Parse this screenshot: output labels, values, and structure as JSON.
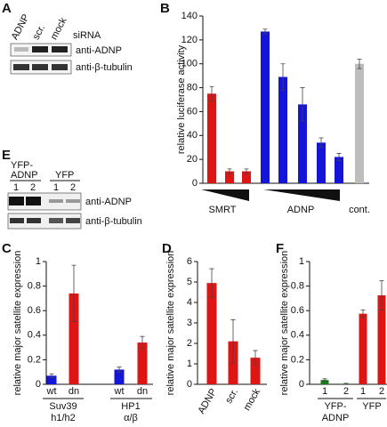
{
  "panels": {
    "A": {
      "label": "A",
      "lanes": [
        "ADNP",
        "scr.",
        "mock"
      ],
      "lane_title": "siRNA",
      "rows": [
        "anti-ADNP",
        "anti-β-tubulin"
      ]
    },
    "E": {
      "label": "E",
      "groups": [
        [
          "YFP-",
          "ADNP"
        ],
        [
          "YFP"
        ]
      ],
      "lanes": [
        "1",
        "2",
        "1",
        "2"
      ],
      "rows": [
        "anti-ADNP",
        "anti-β-tubulin"
      ]
    }
  },
  "chart_data": [
    {
      "type": "bar",
      "panel": "B",
      "ylabel": "relative luciferase activity",
      "categories": [
        null,
        null,
        null,
        null,
        null,
        null,
        null,
        null,
        "cont."
      ],
      "values": [
        75,
        10,
        10,
        127,
        89,
        66,
        34,
        22,
        100
      ],
      "errors": [
        6,
        2,
        2,
        2,
        11,
        14,
        4,
        3,
        4
      ],
      "colors": [
        "#dd1515",
        "#dd1515",
        "#dd1515",
        "#1515d8",
        "#1515d8",
        "#1515d8",
        "#1515d8",
        "#1515d8",
        "#bdbdbd"
      ],
      "groups": [
        [
          "SMRT"
        ],
        [
          "ADNP"
        ]
      ],
      "ylim": [
        0,
        140
      ],
      "yticks": [
        0,
        20,
        40,
        60,
        80,
        100,
        120,
        140
      ]
    },
    {
      "type": "bar",
      "panel": "C",
      "ylabel": "relative major satellite expression",
      "categories": [
        "wt",
        "dn",
        "wt",
        "dn"
      ],
      "values": [
        0.07,
        0.74,
        0.12,
        0.34
      ],
      "errors": [
        0.015,
        0.23,
        0.02,
        0.05
      ],
      "colors": [
        "#1515d8",
        "#dd1515",
        "#1515d8",
        "#dd1515"
      ],
      "groups": [
        [
          "Suv39",
          "h1/h2"
        ],
        [
          "HP1",
          "α/β"
        ]
      ],
      "ylim": [
        0,
        1
      ],
      "yticks": [
        0,
        0.2,
        0.4,
        0.6,
        0.8,
        1
      ]
    },
    {
      "type": "bar",
      "panel": "D",
      "ylabel": "relative major satellite expression",
      "categories": [
        "ADNP",
        "scr.",
        "mock"
      ],
      "values": [
        4.95,
        2.1,
        1.3
      ],
      "errors": [
        0.7,
        1.05,
        0.35
      ],
      "colors": [
        "#dd1515",
        "#dd1515",
        "#dd1515"
      ],
      "ylim": [
        0,
        6
      ],
      "yticks": [
        0,
        1,
        2,
        3,
        4,
        5,
        6
      ]
    },
    {
      "type": "bar",
      "panel": "F",
      "ylabel": "relative major satellite expression",
      "categories": [
        "1",
        "2",
        "1",
        "2"
      ],
      "values": [
        0.035,
        0.005,
        0.575,
        0.725
      ],
      "errors": [
        0.01,
        0.003,
        0.03,
        0.12
      ],
      "colors": [
        "#1a7a1a",
        "#1a7a1a",
        "#dd1515",
        "#dd1515"
      ],
      "groups": [
        [
          "YFP-",
          "ADNP"
        ],
        [
          "YFP"
        ]
      ],
      "ylim": [
        0,
        1
      ],
      "yticks": [
        0,
        0.2,
        0.4,
        0.6,
        0.8,
        1
      ]
    }
  ]
}
